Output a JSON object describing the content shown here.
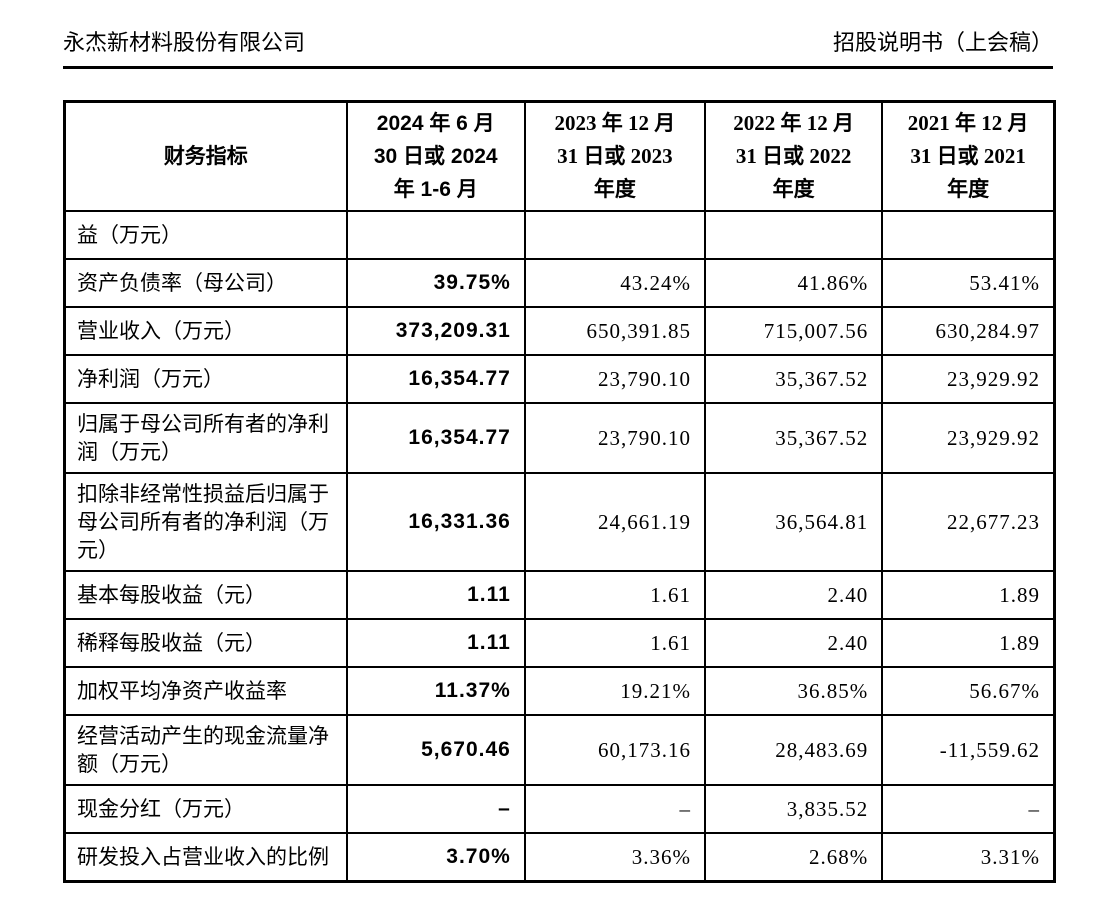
{
  "page_header": {
    "company_name": "永杰新材料股份有限公司",
    "doc_title": "招股说明书（上会稿）"
  },
  "table": {
    "columns": [
      "财务指标",
      "2024 年 6 月\n30 日或 2024\n年 1-6 月",
      "2023 年 12 月\n31 日或 2023\n年度",
      "2022 年 12 月\n31 日或 2022\n年度",
      "2021 年 12 月\n31 日或 2021\n年度"
    ],
    "rows": [
      {
        "label": "益（万元）",
        "values": [
          "",
          "",
          "",
          ""
        ]
      },
      {
        "label": "资产负债率（母公司）",
        "values": [
          "39.75%",
          "43.24%",
          "41.86%",
          "53.41%"
        ]
      },
      {
        "label": "营业收入（万元）",
        "values": [
          "373,209.31",
          "650,391.85",
          "715,007.56",
          "630,284.97"
        ]
      },
      {
        "label": "净利润（万元）",
        "values": [
          "16,354.77",
          "23,790.10",
          "35,367.52",
          "23,929.92"
        ]
      },
      {
        "label": "归属于母公司所有者的净利润（万元）",
        "values": [
          "16,354.77",
          "23,790.10",
          "35,367.52",
          "23,929.92"
        ]
      },
      {
        "label": "扣除非经常性损益后归属于母公司所有者的净利润（万元）",
        "values": [
          "16,331.36",
          "24,661.19",
          "36,564.81",
          "22,677.23"
        ]
      },
      {
        "label": "基本每股收益（元）",
        "values": [
          "1.11",
          "1.61",
          "2.40",
          "1.89"
        ]
      },
      {
        "label": "稀释每股收益（元）",
        "values": [
          "1.11",
          "1.61",
          "2.40",
          "1.89"
        ]
      },
      {
        "label": "加权平均净资产收益率",
        "values": [
          "11.37%",
          "19.21%",
          "36.85%",
          "56.67%"
        ]
      },
      {
        "label": "经营活动产生的现金流量净额（万元）",
        "values": [
          "5,670.46",
          "60,173.16",
          "28,483.69",
          "-11,559.62"
        ]
      },
      {
        "label": "现金分红（万元）",
        "values": [
          "–",
          "–",
          "3,835.52",
          "–"
        ]
      },
      {
        "label": "研发投入占营业收入的比例",
        "values": [
          "3.70%",
          "3.36%",
          "2.68%",
          "3.31%"
        ]
      }
    ]
  }
}
